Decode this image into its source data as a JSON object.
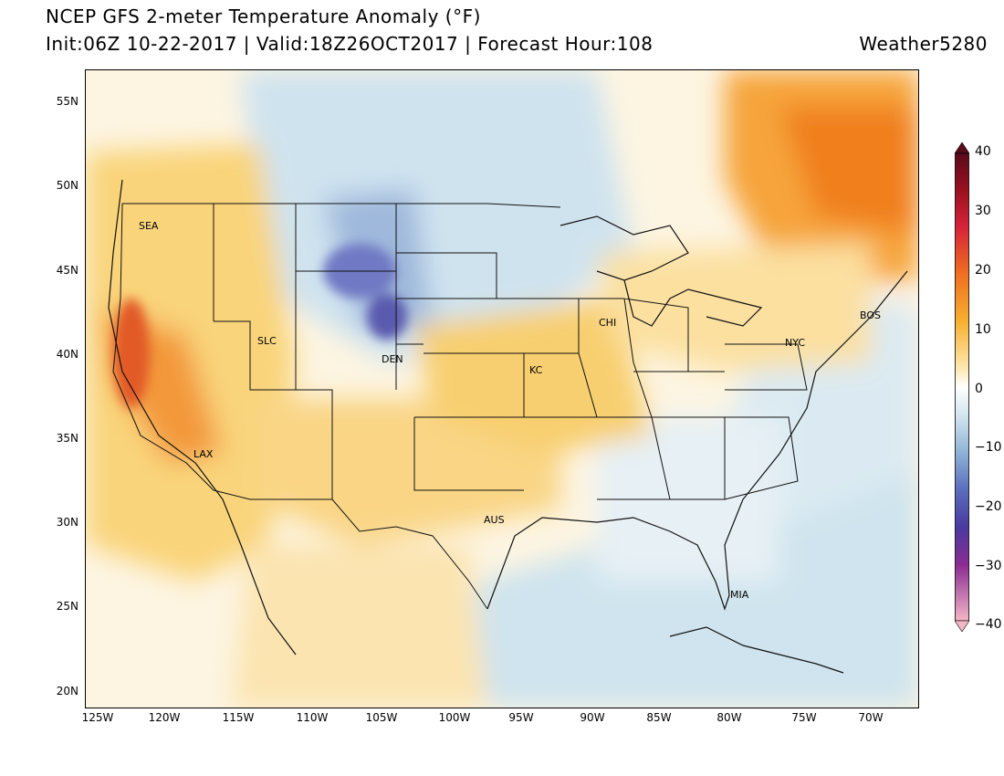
{
  "header": {
    "title": "NCEP GFS 2-meter Temperature Anomaly (°F)",
    "subtitle": "Init:06Z 10-22-2017 | Valid:18Z26OCT2017 | Forecast Hour:108",
    "brand": "Weather5280"
  },
  "axes": {
    "lat_labels": [
      "55N",
      "50N",
      "45N",
      "40N",
      "35N",
      "30N",
      "25N",
      "20N"
    ],
    "lon_labels": [
      "125W",
      "120W",
      "115W",
      "110W",
      "105W",
      "100W",
      "95W",
      "90W",
      "85W",
      "80W",
      "75W",
      "70W"
    ]
  },
  "cities": [
    {
      "name": "SEA"
    },
    {
      "name": "SLC"
    },
    {
      "name": "DEN"
    },
    {
      "name": "KC"
    },
    {
      "name": "CHI"
    },
    {
      "name": "NYC"
    },
    {
      "name": "BOS"
    },
    {
      "name": "LAX"
    },
    {
      "name": "AUS"
    },
    {
      "name": "MIA"
    }
  ],
  "colorbar": {
    "labels": [
      "40",
      "30",
      "20",
      "10",
      "0",
      "−10",
      "−20",
      "−30",
      "−40"
    ],
    "colors": {
      "warm_extreme": "#5a0a1a",
      "warm_high": "#e0303a",
      "warm_mid": "#f07a20",
      "warm_low": "#f9c850",
      "neutral_warm": "#fdf3d6",
      "neutral_cool": "#eef5f8",
      "cool_low": "#b5d3e2",
      "cool_mid": "#6a8fc8",
      "cool_high": "#4a3aa0",
      "cool_extreme": "#f3b6c6"
    }
  }
}
